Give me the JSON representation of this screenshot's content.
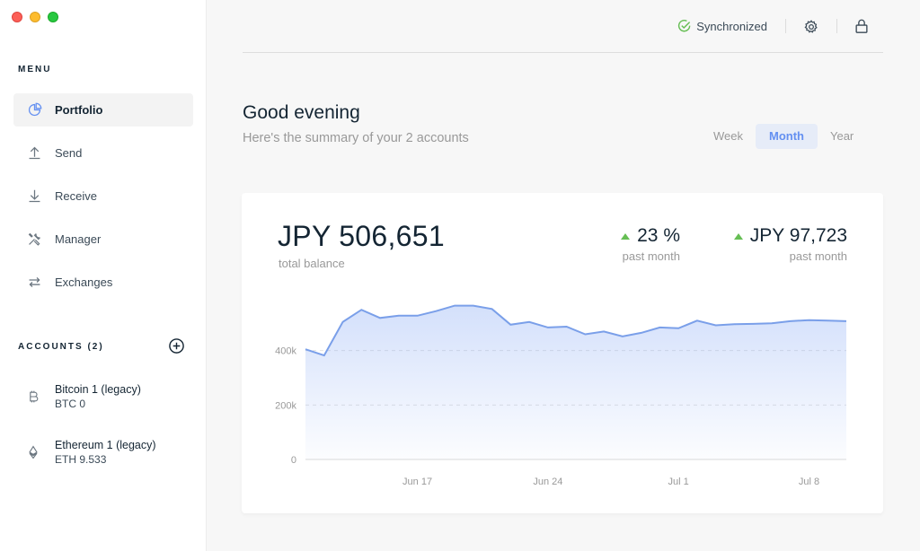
{
  "sidebar": {
    "menu_title": "MENU",
    "items": [
      {
        "label": "Portfolio",
        "icon": "pie-chart-icon",
        "active": true
      },
      {
        "label": "Send",
        "icon": "upload-arrow-icon"
      },
      {
        "label": "Receive",
        "icon": "download-arrow-icon"
      },
      {
        "label": "Manager",
        "icon": "tools-icon"
      },
      {
        "label": "Exchanges",
        "icon": "exchange-arrows-icon"
      }
    ],
    "accounts_title": "ACCOUNTS (2)",
    "accounts": [
      {
        "name": "Bitcoin 1 (legacy)",
        "balance": "BTC 0",
        "icon": "bitcoin-icon"
      },
      {
        "name": "Ethereum 1 (legacy)",
        "balance": "ETH 9.533",
        "icon": "ethereum-icon"
      }
    ]
  },
  "topbar": {
    "sync_label": "Synchronized"
  },
  "greeting": {
    "title": "Good evening",
    "subtitle": "Here's the summary of your 2 accounts"
  },
  "range": {
    "options": [
      "Week",
      "Month",
      "Year"
    ],
    "selected": "Month"
  },
  "balance": {
    "total": "JPY 506,651",
    "total_label": "total balance",
    "change_pct": "23 %",
    "change_pct_label": "past month",
    "change_amount": "JPY 97,723",
    "change_amount_label": "past month"
  },
  "colors": {
    "accent": "#6490f1",
    "positive": "#66be54",
    "sync": "#66be54"
  },
  "chart_data": {
    "type": "area",
    "x_ticks": [
      "Jun 17",
      "Jun 24",
      "Jul 1",
      "Jul 8"
    ],
    "y_ticks": [
      "0",
      "200k",
      "400k"
    ],
    "ylim": [
      0,
      600000
    ],
    "values": [
      405000,
      382000,
      505000,
      550000,
      520000,
      528000,
      528000,
      545000,
      565000,
      565000,
      553000,
      495000,
      505000,
      485000,
      488000,
      460000,
      470000,
      452000,
      465000,
      485000,
      482000,
      510000,
      493000,
      497000,
      498000,
      500000,
      508000,
      512000,
      510000,
      508000
    ],
    "grid": true
  }
}
